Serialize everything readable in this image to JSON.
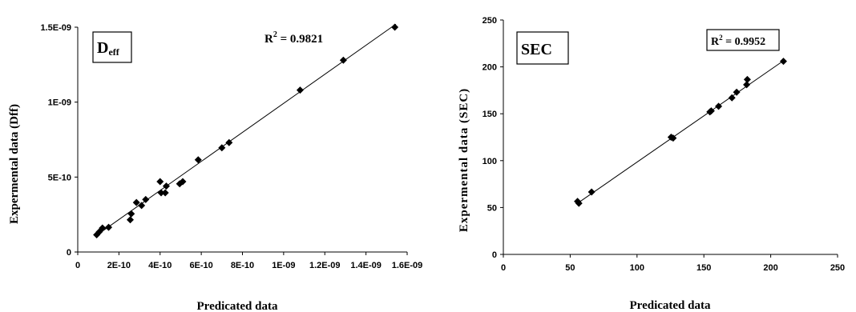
{
  "chart_data": [
    {
      "type": "scatter",
      "xlabel": "Predicated data",
      "ylabel": "Expermental data (Dff)",
      "xlim": [
        0,
        1.6e-09
      ],
      "ylim": [
        0,
        1.5e-09
      ],
      "x_ticks": [
        0,
        2e-10,
        4e-10,
        6e-10,
        8e-10,
        1e-09,
        1.2e-09,
        1.4e-09,
        1.6e-09
      ],
      "x_tick_labels": [
        "0",
        "2E-10",
        "4E-10",
        "6E-10",
        "8E-10",
        "1E-09",
        "1.2E-09",
        "1.4E-09",
        "1.6E-09"
      ],
      "y_ticks": [
        0,
        5e-10,
        1e-09,
        1.5e-09
      ],
      "y_tick_labels": [
        "0",
        "5E-10",
        "1E-09",
        "1.5E-09"
      ],
      "label_box": {
        "main": "D",
        "sub": "eff"
      },
      "r2_label": {
        "prefix": "R",
        "sup": "2",
        "text": " = 0.9821"
      },
      "trendline": {
        "x0": 9e-11,
        "y0": 1.1e-10,
        "x1": 1.545e-09,
        "y1": 1.52e-09
      },
      "points": [
        {
          "x": 9.2e-11,
          "y": 1.15e-10
        },
        {
          "x": 1.05e-10,
          "y": 1.35e-10
        },
        {
          "x": 1.2e-10,
          "y": 1.6e-10
        },
        {
          "x": 1.5e-10,
          "y": 1.65e-10
        },
        {
          "x": 2.55e-10,
          "y": 2.15e-10
        },
        {
          "x": 2.6e-10,
          "y": 2.55e-10
        },
        {
          "x": 2.85e-10,
          "y": 3.3e-10
        },
        {
          "x": 3.1e-10,
          "y": 3.1e-10
        },
        {
          "x": 3.3e-10,
          "y": 3.5e-10
        },
        {
          "x": 4e-10,
          "y": 4.7e-10
        },
        {
          "x": 4.05e-10,
          "y": 3.95e-10
        },
        {
          "x": 4.25e-10,
          "y": 3.95e-10
        },
        {
          "x": 4.3e-10,
          "y": 4.4e-10
        },
        {
          "x": 4.95e-10,
          "y": 4.55e-10
        },
        {
          "x": 5.1e-10,
          "y": 4.7e-10
        },
        {
          "x": 5.85e-10,
          "y": 6.15e-10
        },
        {
          "x": 7e-10,
          "y": 6.95e-10
        },
        {
          "x": 7.35e-10,
          "y": 7.3e-10
        },
        {
          "x": 1.08e-09,
          "y": 1.08e-09
        },
        {
          "x": 1.29e-09,
          "y": 1.28e-09
        },
        {
          "x": 1.54e-09,
          "y": 1.5e-09
        }
      ]
    },
    {
      "type": "scatter",
      "xlabel": "Predicated data",
      "ylabel": "Expermental data (SEC)",
      "xlim": [
        0,
        250
      ],
      "ylim": [
        0,
        250
      ],
      "x_ticks": [
        0,
        50,
        100,
        150,
        200,
        250
      ],
      "x_tick_labels": [
        "0",
        "50",
        "100",
        "150",
        "200",
        "250"
      ],
      "y_ticks": [
        0,
        50,
        100,
        150,
        200,
        250
      ],
      "y_tick_labels": [
        "0",
        "50",
        "100",
        "150",
        "200",
        "250"
      ],
      "label_box": {
        "main": "SEC",
        "sub": ""
      },
      "r2_label": {
        "prefix": "R",
        "sup": "2",
        "text": " = 0.9952"
      },
      "trendline": {
        "x0": 55,
        "y0": 54,
        "x1": 210,
        "y1": 207
      },
      "points": [
        {
          "x": 55.5,
          "y": 56.5
        },
        {
          "x": 56.5,
          "y": 54.5
        },
        {
          "x": 66,
          "y": 66.5
        },
        {
          "x": 125.5,
          "y": 125
        },
        {
          "x": 127,
          "y": 124
        },
        {
          "x": 154.5,
          "y": 152
        },
        {
          "x": 155.5,
          "y": 153
        },
        {
          "x": 161,
          "y": 158
        },
        {
          "x": 171,
          "y": 167
        },
        {
          "x": 174.5,
          "y": 173
        },
        {
          "x": 182,
          "y": 181
        },
        {
          "x": 182.5,
          "y": 186.5
        },
        {
          "x": 209.5,
          "y": 206
        }
      ]
    }
  ]
}
